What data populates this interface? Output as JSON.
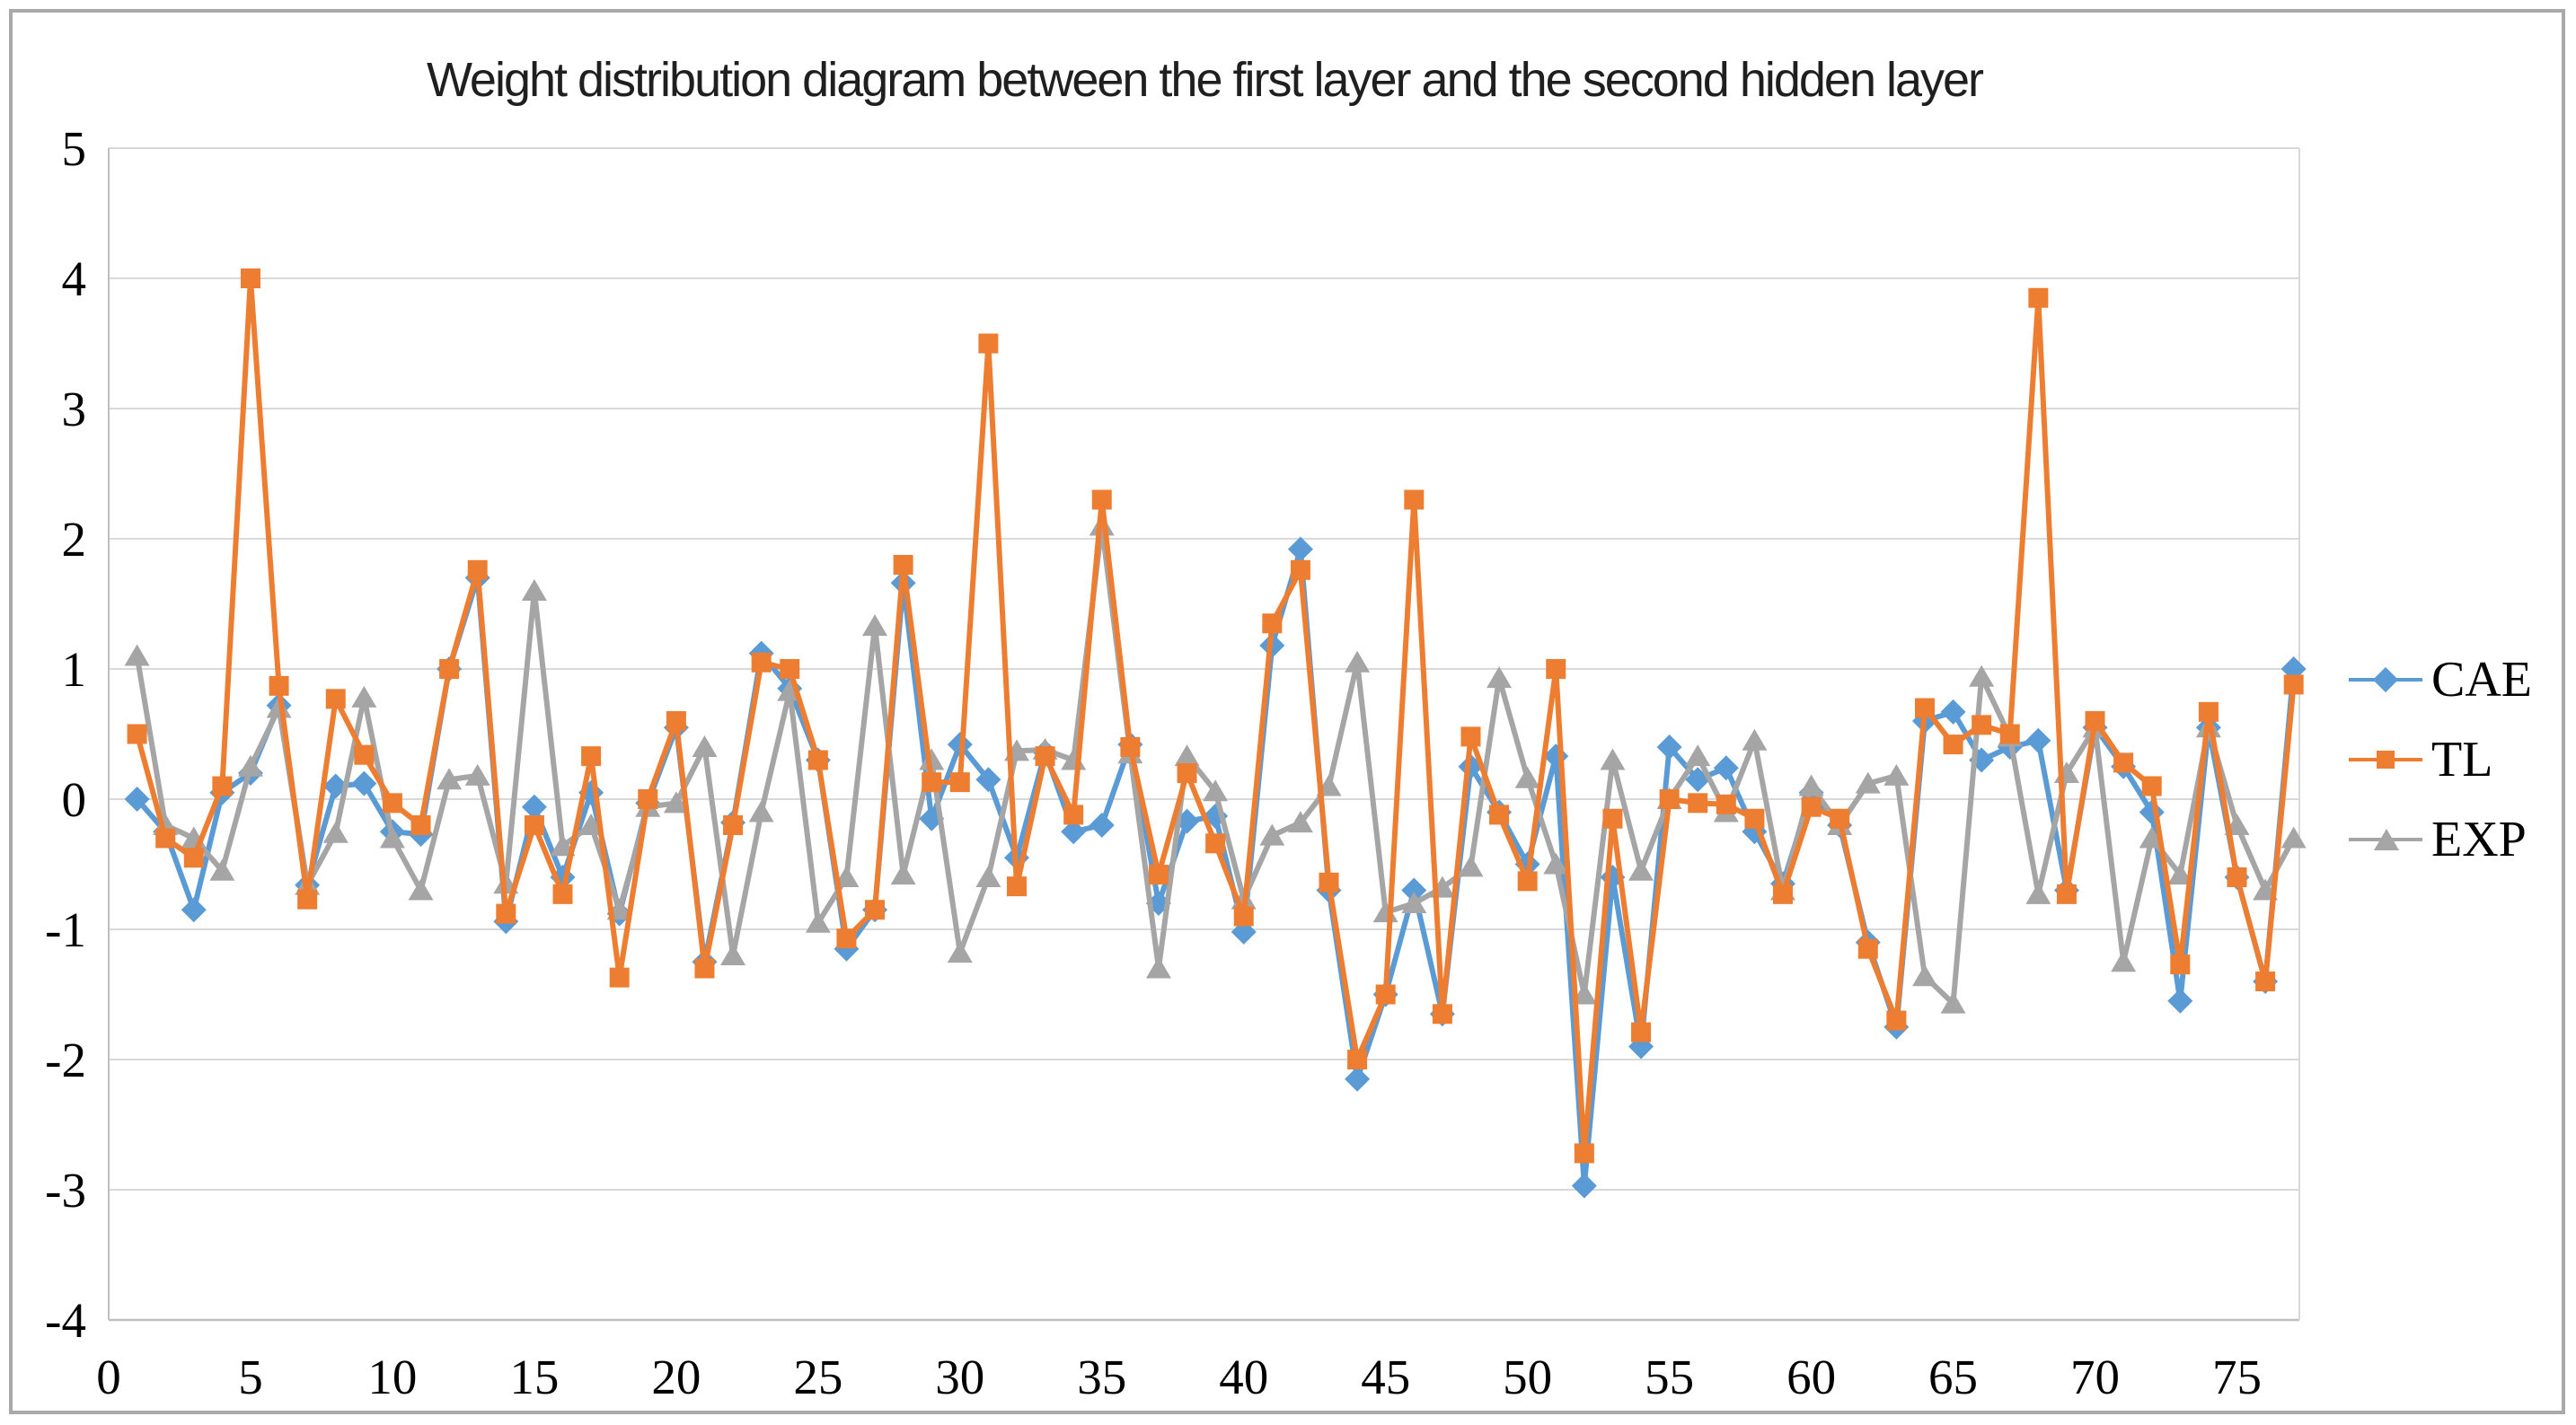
{
  "title": "Weight distribution diagram between the first layer and the second hidden layer",
  "legend": {
    "position": "right",
    "items": [
      {
        "label": "CAE",
        "marker": "diamond",
        "color": "#5B9BD5"
      },
      {
        "label": "TL",
        "marker": "square",
        "color": "#ED7D31"
      },
      {
        "label": "EXP",
        "marker": "triangle",
        "color": "#A5A5A5"
      }
    ]
  },
  "colors": {
    "cae": "#5B9BD5",
    "tl": "#ED7D31",
    "exp": "#A5A5A5",
    "gridline": "#D9D9D9",
    "axis_line": "#BFBFBF",
    "title_text": "#1F1F1F",
    "frame_border": "#A9A9A9"
  },
  "chart_data": {
    "type": "line",
    "title": "Weight distribution diagram between the first layer and the second hidden layer",
    "xlabel": "",
    "ylabel": "",
    "x_start": 1,
    "n_points": 77,
    "ylim": [
      -4,
      5
    ],
    "xlim": [
      0,
      77.2
    ],
    "yticks": [
      5,
      4,
      3,
      2,
      1,
      0,
      -1,
      -2,
      -3,
      -4
    ],
    "xticks": [
      0,
      5,
      10,
      15,
      20,
      25,
      30,
      35,
      40,
      45,
      50,
      55,
      60,
      65,
      70,
      75
    ],
    "grid": "horizontal",
    "legend_position": "right",
    "series": [
      {
        "name": "CAE",
        "color": "#5B9BD5",
        "marker": "diamond",
        "values": [
          0.0,
          -0.25,
          -0.85,
          0.05,
          0.2,
          0.72,
          -0.66,
          0.1,
          0.12,
          -0.25,
          -0.27,
          1.0,
          1.7,
          -0.94,
          -0.06,
          -0.6,
          0.05,
          -0.88,
          -0.03,
          0.55,
          -1.25,
          -0.18,
          1.12,
          0.85,
          0.3,
          -1.15,
          -0.85,
          1.66,
          -0.15,
          0.42,
          0.15,
          -0.45,
          0.36,
          -0.25,
          -0.2,
          0.42,
          -0.8,
          -0.17,
          -0.13,
          -1.02,
          1.18,
          1.92,
          -0.7,
          -2.15,
          -1.5,
          -0.7,
          -1.65,
          0.25,
          -0.1,
          -0.5,
          0.33,
          -2.97,
          -0.6,
          -1.9,
          0.4,
          0.15,
          0.24,
          -0.25,
          -0.65,
          0.05,
          -0.2,
          -1.1,
          -1.75,
          0.6,
          0.67,
          0.3,
          0.4,
          0.45,
          -0.7,
          0.55,
          0.25,
          -0.1,
          -1.55,
          0.55,
          -0.6,
          -1.4,
          1.0
        ]
      },
      {
        "name": "TL",
        "color": "#ED7D31",
        "marker": "square",
        "values": [
          0.5,
          -0.3,
          -0.45,
          0.1,
          4.0,
          0.87,
          -0.77,
          0.77,
          0.34,
          -0.03,
          -0.2,
          1.0,
          1.76,
          -0.88,
          -0.2,
          -0.73,
          0.33,
          -1.37,
          0.0,
          0.6,
          -1.3,
          -0.2,
          1.05,
          1.0,
          0.3,
          -1.07,
          -0.85,
          1.8,
          0.13,
          0.13,
          3.5,
          -0.67,
          0.33,
          -0.12,
          2.3,
          0.4,
          -0.58,
          0.2,
          -0.34,
          -0.9,
          1.35,
          1.76,
          -0.64,
          -2.0,
          -1.5,
          2.3,
          -1.65,
          0.48,
          -0.12,
          -0.63,
          1.0,
          -2.72,
          -0.15,
          -1.79,
          0.0,
          -0.03,
          -0.04,
          -0.15,
          -0.73,
          -0.06,
          -0.15,
          -1.15,
          -1.7,
          0.7,
          0.42,
          0.57,
          0.5,
          3.85,
          -0.73,
          0.6,
          0.28,
          0.1,
          -1.27,
          0.67,
          -0.6,
          -1.4,
          0.88
        ]
      },
      {
        "name": "EXP",
        "color": "#A5A5A5",
        "marker": "triangle",
        "values": [
          1.1,
          -0.2,
          -0.3,
          -0.55,
          0.25,
          0.7,
          -0.66,
          -0.26,
          0.78,
          -0.3,
          -0.7,
          0.15,
          0.18,
          -0.65,
          1.6,
          -0.36,
          -0.2,
          -0.85,
          -0.06,
          -0.03,
          0.4,
          -1.2,
          -0.1,
          0.83,
          -0.95,
          -0.6,
          1.33,
          -0.58,
          0.3,
          -1.18,
          -0.6,
          0.37,
          0.38,
          0.3,
          2.1,
          0.35,
          -1.3,
          0.33,
          0.06,
          -0.77,
          -0.28,
          -0.18,
          0.1,
          1.05,
          -0.87,
          -0.8,
          -0.68,
          -0.52,
          0.93,
          0.16,
          -0.5,
          -1.5,
          0.3,
          -0.55,
          0.0,
          0.33,
          -0.1,
          0.45,
          -0.7,
          0.1,
          -0.2,
          0.12,
          0.18,
          -1.36,
          -1.57,
          0.94,
          0.48,
          -0.73,
          0.2,
          0.55,
          -1.25,
          -0.3,
          -0.58,
          0.55,
          -0.2,
          -0.7,
          -0.3
        ]
      }
    ]
  }
}
